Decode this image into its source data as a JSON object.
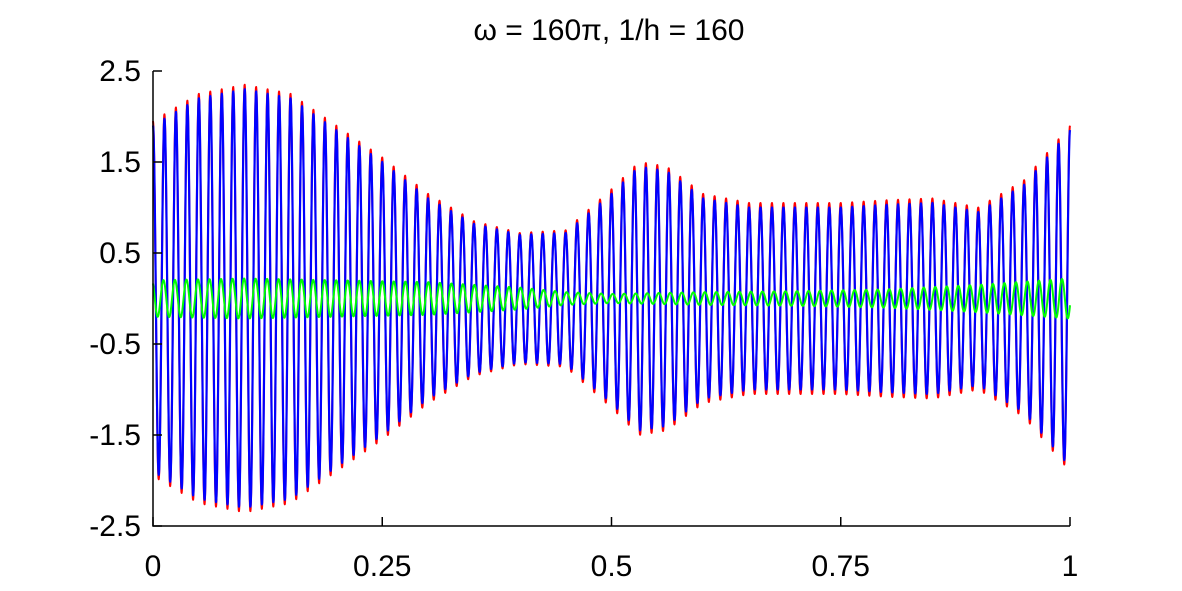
{
  "chart_data": {
    "type": "line",
    "title": "ω = 160π, 1/h = 160",
    "xlabel": "",
    "ylabel": "",
    "xlim": [
      0,
      1
    ],
    "ylim": [
      -2.5,
      2.5
    ],
    "x_ticks": [
      {
        "value": 0,
        "label": "0"
      },
      {
        "value": 0.25,
        "label": "0.25"
      },
      {
        "value": 0.5,
        "label": "0.5"
      },
      {
        "value": 0.75,
        "label": "0.75"
      },
      {
        "value": 1,
        "label": "1"
      }
    ],
    "y_ticks": [
      {
        "value": 2.5,
        "label": "2.5"
      },
      {
        "value": 1.5,
        "label": "1.5"
      },
      {
        "value": 0.5,
        "label": "0.5"
      },
      {
        "value": -0.5,
        "label": "-0.5"
      },
      {
        "value": -1.5,
        "label": "-1.5"
      },
      {
        "value": -2.5,
        "label": "-2.5"
      }
    ],
    "grid": false,
    "legend": "none",
    "carrier_cycles": 80,
    "series": [
      {
        "color": "#ff0000",
        "envelope": {
          "x": [
            0,
            0.05,
            0.1,
            0.15,
            0.2,
            0.25,
            0.3,
            0.35,
            0.4,
            0.45,
            0.5,
            0.53,
            0.56,
            0.6,
            0.65,
            0.7,
            0.75,
            0.8,
            0.85,
            0.9,
            0.95,
            1
          ],
          "y": [
            1.95,
            2.25,
            2.35,
            2.25,
            1.9,
            1.55,
            1.15,
            0.85,
            0.72,
            0.75,
            1.2,
            1.5,
            1.45,
            1.15,
            1.05,
            1.05,
            1.05,
            1.08,
            1.1,
            1.0,
            1.3,
            1.9
          ]
        }
      },
      {
        "color": "#0000ff",
        "envelope": {
          "x": [
            0,
            0.05,
            0.1,
            0.15,
            0.2,
            0.25,
            0.3,
            0.35,
            0.4,
            0.45,
            0.5,
            0.53,
            0.56,
            0.6,
            0.65,
            0.7,
            0.75,
            0.8,
            0.85,
            0.9,
            0.95,
            1
          ],
          "y": [
            1.9,
            2.2,
            2.3,
            2.2,
            1.85,
            1.5,
            1.1,
            0.82,
            0.7,
            0.72,
            1.15,
            1.45,
            1.4,
            1.1,
            1.0,
            1.0,
            1.0,
            1.03,
            1.05,
            0.95,
            1.25,
            1.85
          ]
        }
      },
      {
        "color": "#00ff00",
        "envelope": {
          "x": [
            0,
            0.1,
            0.2,
            0.3,
            0.4,
            0.45,
            0.5,
            0.6,
            0.7,
            0.8,
            0.9,
            1
          ],
          "y": [
            0.2,
            0.22,
            0.2,
            0.18,
            0.12,
            0.07,
            0.05,
            0.07,
            0.08,
            0.1,
            0.15,
            0.22
          ]
        }
      }
    ]
  }
}
